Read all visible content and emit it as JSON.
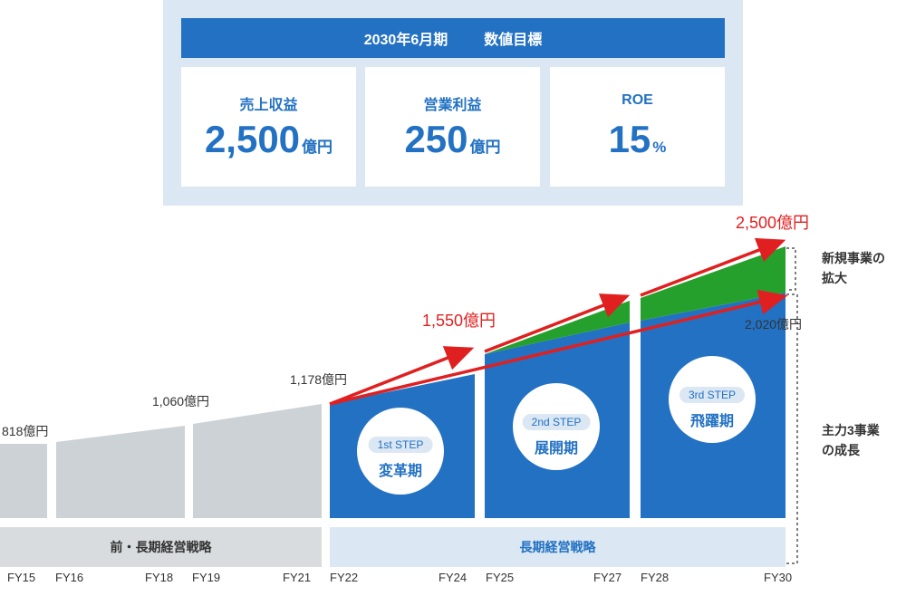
{
  "targets": {
    "header_period": "2030年6月期",
    "header_title": "数値目標",
    "cards": [
      {
        "label": "売上収益",
        "value": "2,500",
        "unit": "億円"
      },
      {
        "label": "営業利益",
        "value": "250",
        "unit": "億円"
      },
      {
        "label": "ROE",
        "value": "15",
        "unit": "%"
      }
    ]
  },
  "chart_data": {
    "type": "area",
    "x": [
      "FY15",
      "FY16",
      "FY18",
      "FY19",
      "FY21",
      "FY22",
      "FY24",
      "FY25",
      "FY27",
      "FY28",
      "FY30"
    ],
    "value_labels": {
      "fy15": "818億円",
      "fy18": "1,060億円",
      "fy21": "1,178億円",
      "fy24_target": "1,550億円",
      "fy30_core": "2,020億円",
      "fy30_target": "2,500億円"
    },
    "series": [
      {
        "name": "前・長期経営戦略",
        "color": "#cdd2d7"
      },
      {
        "name": "長期経営戦略",
        "color": "#2271c3"
      },
      {
        "name": "新規事業の拡大",
        "color": "#26a02d"
      }
    ],
    "steps": [
      {
        "pill": "1st STEP",
        "name": "変革期"
      },
      {
        "pill": "2nd STEP",
        "name": "展開期"
      },
      {
        "pill": "3rd STEP",
        "name": "飛躍期"
      }
    ],
    "bars": {
      "previous": "前・長期経営戦略",
      "current": "長期経営戦略"
    },
    "notes": {
      "new_business_line1": "新規事業の",
      "new_business_line2": "拡大",
      "core_line1": "主力3事業",
      "core_line2": "の成長"
    }
  }
}
